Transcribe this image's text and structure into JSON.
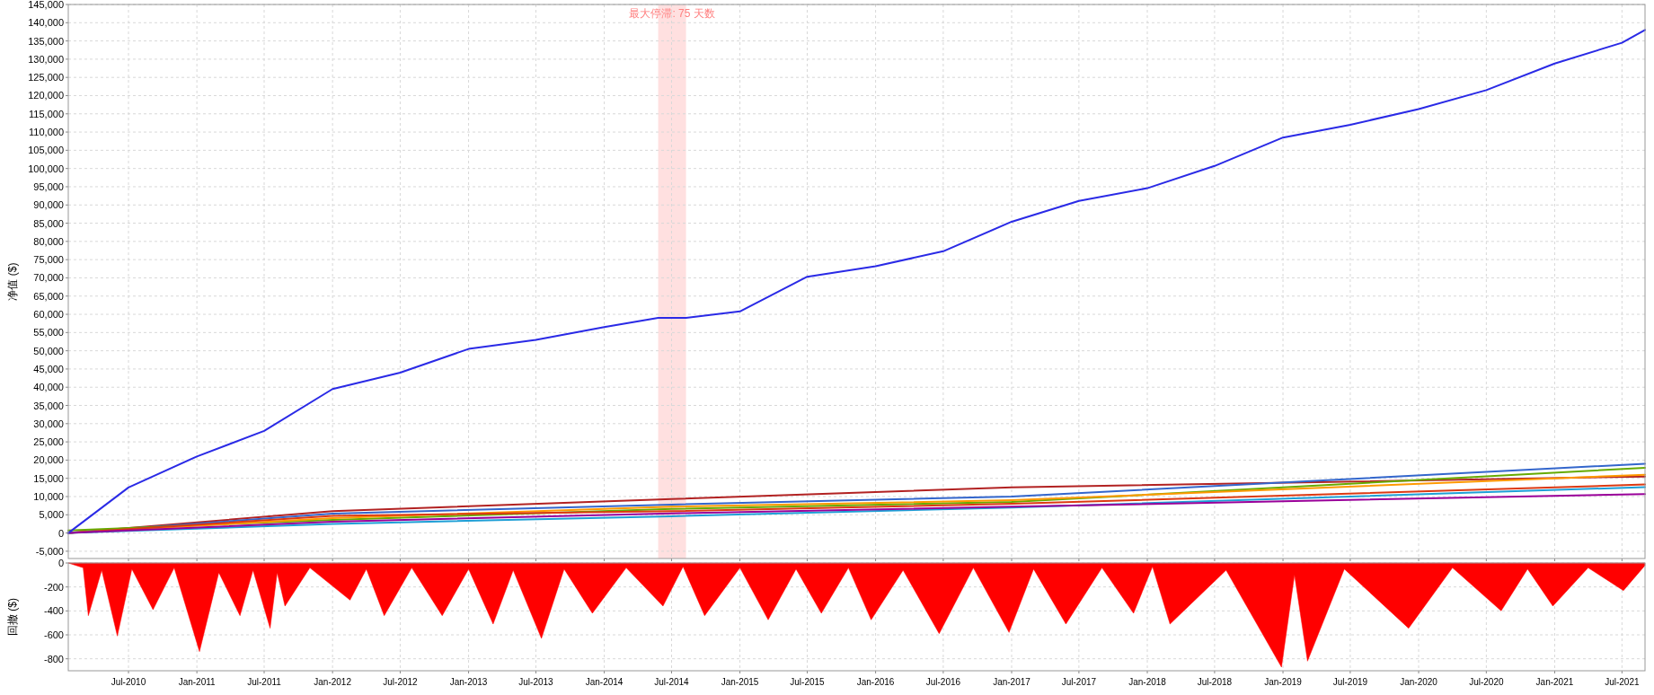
{
  "chart_data": [
    {
      "type": "line",
      "ylabel": "净值 ($)",
      "xlim": [
        "2010-01-20",
        "2021-09-01"
      ],
      "ylim": [
        -7000,
        145000
      ],
      "yticks": [
        {
          "value": -5000,
          "label": "-5,000"
        },
        0,
        {
          "value": 5000,
          "label": "5,000"
        },
        {
          "value": 10000,
          "label": "10,000"
        },
        {
          "value": 15000,
          "label": "15,000"
        },
        {
          "value": 20000,
          "label": "20,000"
        },
        {
          "value": 25000,
          "label": "25,000"
        },
        {
          "value": 30000,
          "label": "30,000"
        },
        {
          "value": 35000,
          "label": "35,000"
        },
        {
          "value": 40000,
          "label": "40,000"
        },
        {
          "value": 45000,
          "label": "45,000"
        },
        {
          "value": 50000,
          "label": "50,000"
        },
        {
          "value": 55000,
          "label": "55,000"
        },
        {
          "value": 60000,
          "label": "60,000"
        },
        {
          "value": 65000,
          "label": "65,000"
        },
        {
          "value": 70000,
          "label": "70,000"
        },
        {
          "value": 75000,
          "label": "75,000"
        },
        {
          "value": 80000,
          "label": "80,000"
        },
        {
          "value": 85000,
          "label": "85,000"
        },
        {
          "value": 90000,
          "label": "90,000"
        },
        {
          "value": 95000,
          "label": "95,000"
        },
        {
          "value": 100000,
          "label": "100,000"
        },
        {
          "value": 105000,
          "label": "105,000"
        },
        {
          "value": 110000,
          "label": "110,000"
        },
        {
          "value": 115000,
          "label": "115,000"
        },
        {
          "value": 120000,
          "label": "120,000"
        },
        {
          "value": 125000,
          "label": "125,000"
        },
        {
          "value": 130000,
          "label": "130,000"
        },
        {
          "value": 135000,
          "label": "135,000"
        },
        {
          "value": 140000,
          "label": "140,000"
        },
        {
          "value": 145000,
          "label": "145,000"
        }
      ],
      "xticks": [
        {
          "value": "2010-07-01",
          "label": null
        },
        {
          "value": "2011-01-01",
          "label": null
        },
        {
          "value": "2011-07-01",
          "label": null
        },
        {
          "value": "2012-01-01",
          "label": null
        },
        {
          "value": "2012-07-01",
          "label": null
        },
        {
          "value": "2013-01-01",
          "label": null
        },
        {
          "value": "2013-07-01",
          "label": null
        },
        {
          "value": "2014-01-01",
          "label": null
        },
        {
          "value": "2014-07-01",
          "label": null
        },
        {
          "value": "2015-01-01",
          "label": null
        },
        {
          "value": "2015-07-01",
          "label": null
        },
        {
          "value": "2016-01-01",
          "label": null
        },
        {
          "value": "2016-07-01",
          "label": null
        },
        {
          "value": "2017-01-01",
          "label": null
        },
        {
          "value": "2017-07-01",
          "label": null
        },
        {
          "value": "2018-01-01",
          "label": null
        },
        {
          "value": "2018-07-01",
          "label": null
        },
        {
          "value": "2019-01-01",
          "label": null
        },
        {
          "value": "2019-07-01",
          "label": null
        },
        {
          "value": "2020-01-01",
          "label": null
        },
        {
          "value": "2020-07-01",
          "label": null
        },
        {
          "value": "2021-01-01",
          "label": null
        },
        {
          "value": "2021-07-01",
          "label": null
        }
      ],
      "tick_labels": "y",
      "grid": true,
      "bands": [
        {
          "axis": "x",
          "from": "2014-05-26",
          "to": "2014-08-09",
          "label": "最大停滞: 75 天数",
          "color": "#ffe0e0"
        }
      ],
      "x": [
        "2010-01-20",
        "2012-01-01",
        "2014-07-01",
        "2017-01-01",
        "2021-09-01"
      ],
      "series": [
        {
          "color": "#b22222",
          "values": [
            0,
            6000,
            9300,
            12500,
            15500
          ]
        },
        {
          "color": "#3366cc",
          "values": [
            0,
            5300,
            7800,
            10000,
            19000
          ]
        },
        {
          "color": "#66aa00",
          "values": [
            700,
            3600,
            6600,
            8500,
            17900
          ]
        },
        {
          "color": "#ff9900",
          "values": [
            0,
            4100,
            7200,
            9000,
            16000
          ]
        },
        {
          "color": "#dc3912",
          "values": [
            0,
            4700,
            6000,
            8000,
            13300
          ]
        },
        {
          "color": "#1e9fd6",
          "values": [
            0,
            2500,
            4600,
            7000,
            12600
          ]
        },
        {
          "color": "#990099",
          "values": [
            0,
            3100,
            5400,
            7200,
            10700
          ]
        },
        {
          "color": "#2a2ae6",
          "x": [
            "2010-01-20",
            "2010-07-01",
            "2011-01-01",
            "2011-07-01",
            "2012-01-01",
            "2012-07-01",
            "2013-01-01",
            "2013-07-01",
            "2014-01-01",
            "2014-05-26",
            "2014-08-09",
            "2015-01-01",
            "2015-07-01",
            "2016-01-01",
            "2016-07-01",
            "2017-01-01",
            "2017-07-01",
            "2018-01-01",
            "2018-07-01",
            "2019-01-01",
            "2019-07-01",
            "2020-01-01",
            "2020-07-01",
            "2021-01-01",
            "2021-07-01",
            "2021-09-01"
          ],
          "values": [
            0,
            12500,
            21000,
            28000,
            39500,
            44000,
            50500,
            53000,
            56500,
            59000,
            59000,
            60800,
            70300,
            73200,
            77300,
            85400,
            91100,
            94600,
            100700,
            108500,
            112000,
            116300,
            121500,
            128800,
            134500,
            138000
          ]
        }
      ]
    },
    {
      "type": "area",
      "ylabel": "回撤 ($)",
      "xlim": [
        "2010-01-20",
        "2021-09-01"
      ],
      "ylim": [
        -900,
        0
      ],
      "yticks": [
        -800,
        -600,
        -400,
        -200,
        0
      ],
      "grid": true,
      "xticks": [
        {
          "value": "2010-07-01",
          "label": "Jul-2010"
        },
        {
          "value": "2011-01-01",
          "label": "Jan-2011"
        },
        {
          "value": "2011-07-01",
          "label": "Jul-2011"
        },
        {
          "value": "2012-01-01",
          "label": "Jan-2012"
        },
        {
          "value": "2012-07-01",
          "label": "Jul-2012"
        },
        {
          "value": "2013-01-01",
          "label": "Jan-2013"
        },
        {
          "value": "2013-07-01",
          "label": "Jul-2013"
        },
        {
          "value": "2014-01-01",
          "label": "Jan-2014"
        },
        {
          "value": "2014-07-01",
          "label": "Jul-2014"
        },
        {
          "value": "2015-01-01",
          "label": "Jan-2015"
        },
        {
          "value": "2015-07-01",
          "label": "Jul-2015"
        },
        {
          "value": "2016-01-01",
          "label": "Jan-2016"
        },
        {
          "value": "2016-07-01",
          "label": "Jul-2016"
        },
        {
          "value": "2017-01-01",
          "label": "Jan-2017"
        },
        {
          "value": "2017-07-01",
          "label": "Jul-2017"
        },
        {
          "value": "2018-01-01",
          "label": "Jan-2018"
        },
        {
          "value": "2018-07-01",
          "label": "Jul-2018"
        },
        {
          "value": "2019-01-01",
          "label": "Jan-2019"
        },
        {
          "value": "2019-07-01",
          "label": "Jul-2019"
        },
        {
          "value": "2020-01-01",
          "label": "Jan-2020"
        },
        {
          "value": "2020-07-01",
          "label": "Jul-2020"
        },
        {
          "value": "2021-01-01",
          "label": "Jan-2021"
        },
        {
          "value": "2021-07-01",
          "label": "Jul-2021"
        }
      ],
      "series": [
        {
          "color": "#ff0000",
          "x": [
            "2010-01-20",
            "2010-03-01",
            "2010-03-15",
            "2010-04-20",
            "2010-06-01",
            "2010-07-10",
            "2010-09-05",
            "2010-11-01",
            "2011-01-08",
            "2011-03-01",
            "2011-04-27",
            "2011-06-01",
            "2011-07-17",
            "2011-08-05",
            "2011-08-26",
            "2011-11-01",
            "2012-02-17",
            "2012-04-01",
            "2012-05-19",
            "2012-08-01",
            "2012-10-22",
            "2013-01-01",
            "2013-03-08",
            "2013-05-01",
            "2013-07-16",
            "2013-09-15",
            "2013-11-30",
            "2014-03-01",
            "2014-06-08",
            "2014-08-01",
            "2014-09-28",
            "2015-01-01",
            "2015-03-18",
            "2015-06-01",
            "2015-08-08",
            "2015-10-20",
            "2015-12-20",
            "2016-03-15",
            "2016-06-20",
            "2016-09-20",
            "2016-12-25",
            "2017-03-01",
            "2017-05-27",
            "2017-09-01",
            "2017-11-25",
            "2018-01-15",
            "2018-03-03",
            "2018-08-01",
            "2018-12-28",
            "2019-02-01",
            "2019-03-08",
            "2019-06-15",
            "2019-12-05",
            "2020-04-01",
            "2020-08-10",
            "2020-10-20",
            "2020-12-27",
            "2021-04-01",
            "2021-07-05",
            "2021-09-01"
          ],
          "values": [
            0,
            -40,
            -440,
            -60,
            -610,
            -50,
            -390,
            -40,
            -740,
            -80,
            -440,
            -60,
            -545,
            -80,
            -360,
            -40,
            -310,
            -50,
            -440,
            -40,
            -440,
            -50,
            -510,
            -60,
            -630,
            -50,
            -420,
            -40,
            -360,
            -30,
            -440,
            -40,
            -475,
            -50,
            -420,
            -40,
            -475,
            -60,
            -590,
            -40,
            -580,
            -50,
            -510,
            -40,
            -420,
            -30,
            -510,
            -60,
            -870,
            -100,
            -820,
            -50,
            -545,
            -40,
            -400,
            -50,
            -360,
            -40,
            -230,
            -20
          ]
        }
      ]
    }
  ]
}
